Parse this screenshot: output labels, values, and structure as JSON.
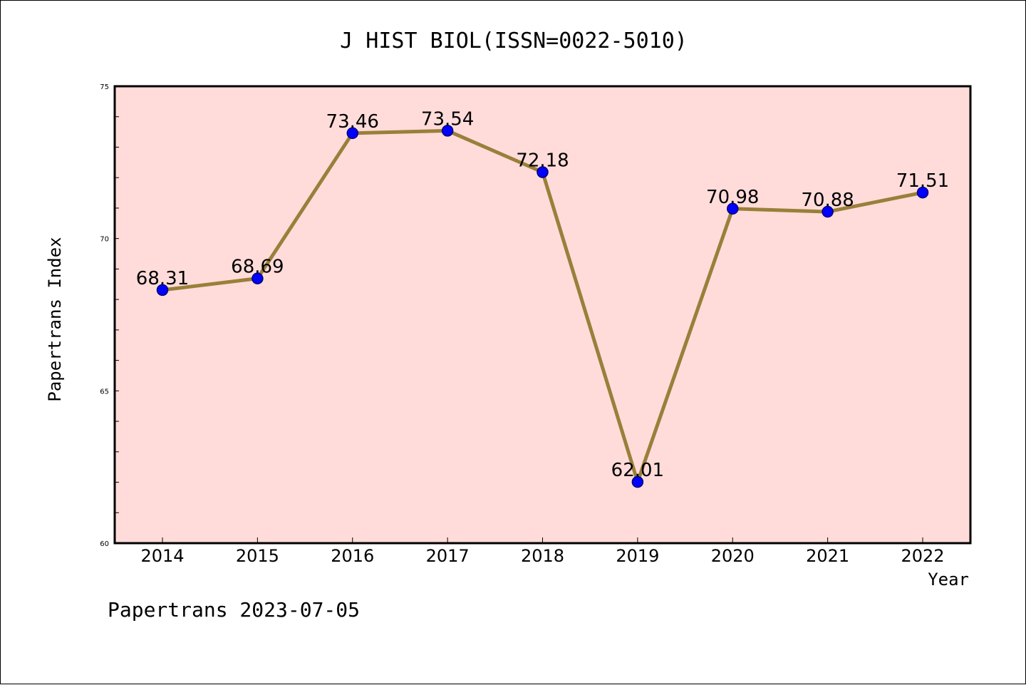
{
  "chart_data": {
    "type": "line",
    "title": "J HIST BIOL(ISSN=0022-5010)",
    "xlabel": "Year",
    "ylabel": "Papertrans Index",
    "categories": [
      "2014",
      "2015",
      "2016",
      "2017",
      "2018",
      "2019",
      "2020",
      "2021",
      "2022"
    ],
    "values": [
      68.31,
      68.69,
      73.46,
      73.54,
      72.18,
      62.01,
      70.98,
      70.88,
      71.51
    ],
    "data_labels": [
      "68.31",
      "68.69",
      "73.46",
      "73.54",
      "72.18",
      "62.01",
      "70.98",
      "70.88",
      "71.51"
    ],
    "ylim": [
      60,
      75
    ],
    "y_ticks": [
      60,
      65,
      70,
      75
    ],
    "y_tick_labels": [
      "60",
      "65",
      "70",
      "75"
    ],
    "grid": false,
    "legend": "none",
    "footer": "Papertrans 2023-07-05",
    "colors": {
      "plot_background": "#FFDCDA",
      "line": "#9A7F3A",
      "marker": "#0000FF",
      "axes": "#000000"
    }
  }
}
